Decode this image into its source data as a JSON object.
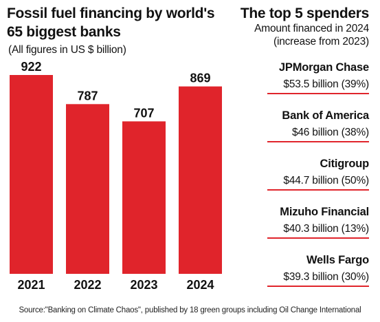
{
  "chart_data": {
    "type": "bar",
    "title": "Fossil fuel financing by world's 65 biggest banks",
    "subtitle": "(All figures  in US $ billion)",
    "categories": [
      "2021",
      "2022",
      "2023",
      "2024"
    ],
    "values": [
      922,
      787,
      707,
      869
    ],
    "ylim": [
      0,
      922
    ],
    "grid": false,
    "bar_color": "#e0242b"
  },
  "top_spenders": {
    "title": "The top 5 spenders",
    "subtitle_line1": "Amount financed in 2024",
    "subtitle_line2": "(increase from 2023)",
    "items": [
      {
        "name": "JPMorgan Chase",
        "amount": "$53.5 billion (39%)"
      },
      {
        "name": "Bank of America",
        "amount": "$46 billion (38%)"
      },
      {
        "name": "Citigroup",
        "amount": "$44.7 billion (50%)"
      },
      {
        "name": "Mizuho Financial",
        "amount": "$40.3 billion (13%)"
      },
      {
        "name": "Wells Fargo",
        "amount": "$39.3 billion (30%)"
      }
    ]
  },
  "source": "Source:\"Banking on Climate Chaos\", published by 18 green groups including Oil Change International"
}
